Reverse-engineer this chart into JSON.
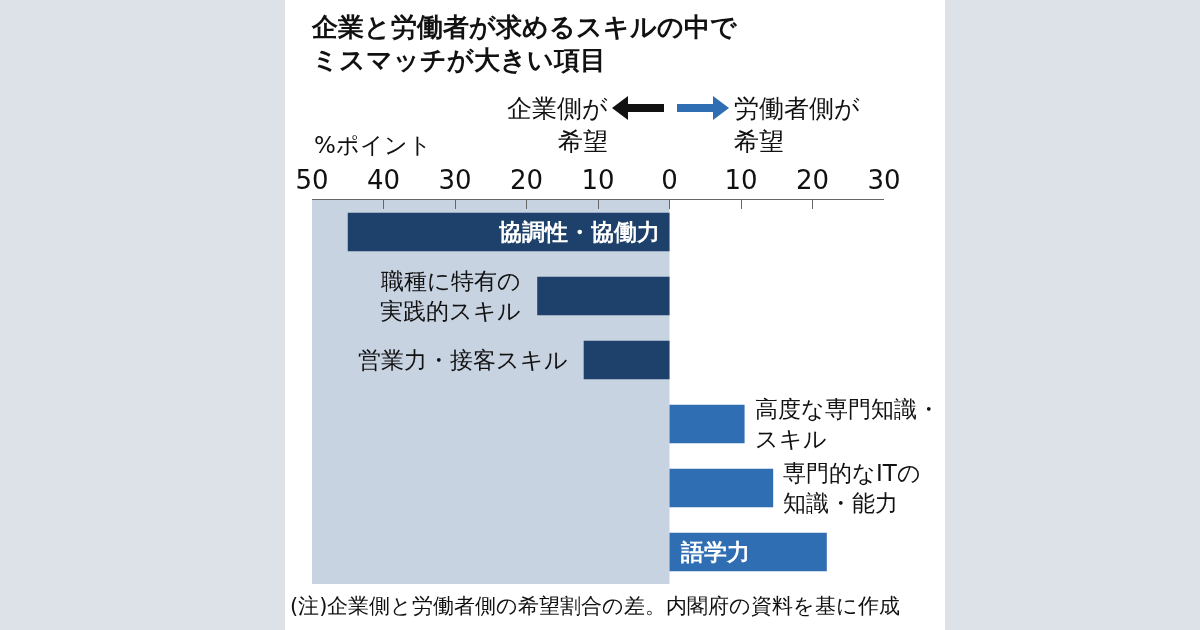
{
  "chart_data": {
    "type": "bar",
    "orientation": "horizontal",
    "title": "企業と労働者が求めるスキルの中でミスマッチが大きい項目",
    "xlabel": "%ポイント",
    "categories": [
      "協調性・協働力",
      "職種に特有の実践的スキル",
      "営業力・接客スキル",
      "高度な専門知識・スキル",
      "専門的なITの知識・能力",
      "語学力"
    ],
    "values": [
      -45,
      -18.5,
      -12,
      10.5,
      14.5,
      22
    ],
    "colors": [
      "#1d416b",
      "#1d416b",
      "#1d416b",
      "#2f6eb3",
      "#2f6eb3",
      "#2f6eb3"
    ],
    "xlim": [
      -50,
      30
    ],
    "xticks": [
      {
        "value": -50,
        "label": "50"
      },
      {
        "value": -40,
        "label": "40"
      },
      {
        "value": -30,
        "label": "30"
      },
      {
        "value": -20,
        "label": "20"
      },
      {
        "value": -10,
        "label": "10"
      },
      {
        "value": 0,
        "label": "0"
      },
      {
        "value": 10,
        "label": "10"
      },
      {
        "value": 20,
        "label": "20"
      },
      {
        "value": 30,
        "label": "30"
      }
    ],
    "grid": false,
    "bands": [
      {
        "axis": "x",
        "from": -50,
        "to": 0,
        "color": "#c8d3e2"
      }
    ],
    "annotations": [
      "企業側が希望",
      "労働者側が希望",
      "(注)企業側と労働者側の希望割合の差。内閣府の資料を基に作成"
    ]
  }
}
